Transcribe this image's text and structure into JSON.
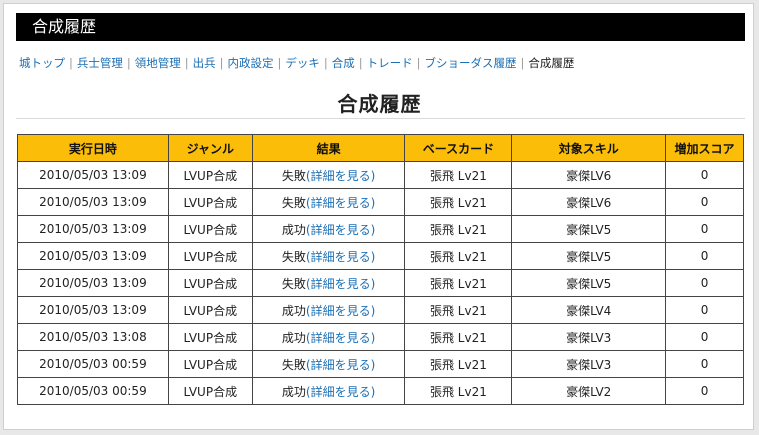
{
  "page": {
    "title_bar": "合成履歴",
    "heading": "合成履歴"
  },
  "nav": {
    "items": [
      "城トップ",
      "兵士管理",
      "領地管理",
      "出兵",
      "内政設定",
      "デッキ",
      "合成",
      "トレード",
      "ブショーダス履歴"
    ],
    "current": "合成履歴"
  },
  "table": {
    "headers": [
      "実行日時",
      "ジャンル",
      "結果",
      "ベースカード",
      "対象スキル",
      "増加スコア"
    ],
    "detail_link": "(詳細を見る)",
    "rows": [
      {
        "datetime": "2010/05/03 13:09",
        "genre": "LVUP合成",
        "result": "失敗",
        "base_card": "張飛 Lv21",
        "skill": "豪傑LV6",
        "score": "0"
      },
      {
        "datetime": "2010/05/03 13:09",
        "genre": "LVUP合成",
        "result": "失敗",
        "base_card": "張飛 Lv21",
        "skill": "豪傑LV6",
        "score": "0"
      },
      {
        "datetime": "2010/05/03 13:09",
        "genre": "LVUP合成",
        "result": "成功",
        "base_card": "張飛 Lv21",
        "skill": "豪傑LV5",
        "score": "0"
      },
      {
        "datetime": "2010/05/03 13:09",
        "genre": "LVUP合成",
        "result": "失敗",
        "base_card": "張飛 Lv21",
        "skill": "豪傑LV5",
        "score": "0"
      },
      {
        "datetime": "2010/05/03 13:09",
        "genre": "LVUP合成",
        "result": "失敗",
        "base_card": "張飛 Lv21",
        "skill": "豪傑LV5",
        "score": "0"
      },
      {
        "datetime": "2010/05/03 13:09",
        "genre": "LVUP合成",
        "result": "成功",
        "base_card": "張飛 Lv21",
        "skill": "豪傑LV4",
        "score": "0"
      },
      {
        "datetime": "2010/05/03 13:08",
        "genre": "LVUP合成",
        "result": "成功",
        "base_card": "張飛 Lv21",
        "skill": "豪傑LV3",
        "score": "0"
      },
      {
        "datetime": "2010/05/03 00:59",
        "genre": "LVUP合成",
        "result": "失敗",
        "base_card": "張飛 Lv21",
        "skill": "豪傑LV3",
        "score": "0"
      },
      {
        "datetime": "2010/05/03 00:59",
        "genre": "LVUP合成",
        "result": "成功",
        "base_card": "張飛 Lv21",
        "skill": "豪傑LV2",
        "score": "0"
      }
    ]
  },
  "colors": {
    "header_bg": "#fbbd08",
    "title_bar_bg": "#000000",
    "link": "#1b6fb5"
  }
}
